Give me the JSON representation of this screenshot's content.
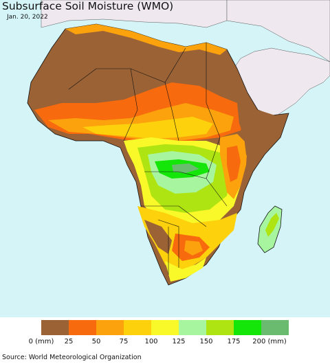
{
  "title": "Subsurface Soil Moisture (WMO)",
  "date": "Jan. 20, 2022",
  "source": "Source: World Meteorological Organization",
  "colors": {
    "ocean": "#d4f4f8",
    "other_land": "#efe9ef",
    "border": "#111111"
  },
  "legend": {
    "colors": [
      "#9a6235",
      "#f86a0e",
      "#fba20c",
      "#fdd20c",
      "#f9f929",
      "#a8f5a0",
      "#aee411",
      "#14e60a",
      "#6aba70"
    ],
    "ticks": [
      "0 (mm)",
      "25",
      "50",
      "75",
      "100",
      "125",
      "150",
      "175",
      "200 (mm)"
    ]
  }
}
